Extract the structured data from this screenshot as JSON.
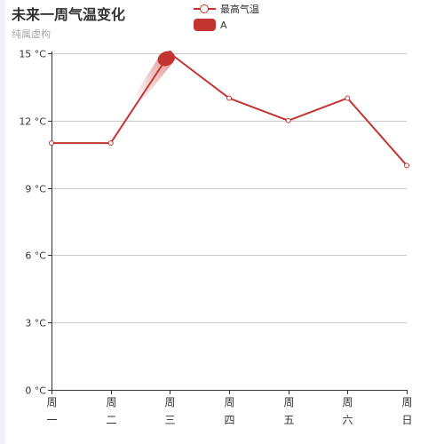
{
  "chart_data": {
    "type": "line",
    "title": "未来一周气温变化",
    "subtitle": "纯属虚构",
    "categories": [
      "周一",
      "周二",
      "周三",
      "周四",
      "周五",
      "周六",
      "周日"
    ],
    "series": [
      {
        "name": "最高气温",
        "values": [
          11,
          11,
          15,
          13,
          12,
          13,
          10
        ]
      }
    ],
    "y_unit": "°C",
    "yticks": [
      0,
      3,
      6,
      9,
      12,
      15
    ],
    "ylim": [
      0,
      15
    ],
    "grid": true,
    "legend_position": "top-center",
    "legend": [
      "最高气温",
      "A"
    ],
    "markpoint": {
      "label": "A",
      "category": "周三",
      "value": 15
    },
    "colors": {
      "series": "#c23531",
      "grid": "#cccccc",
      "axis": "#333333"
    }
  }
}
